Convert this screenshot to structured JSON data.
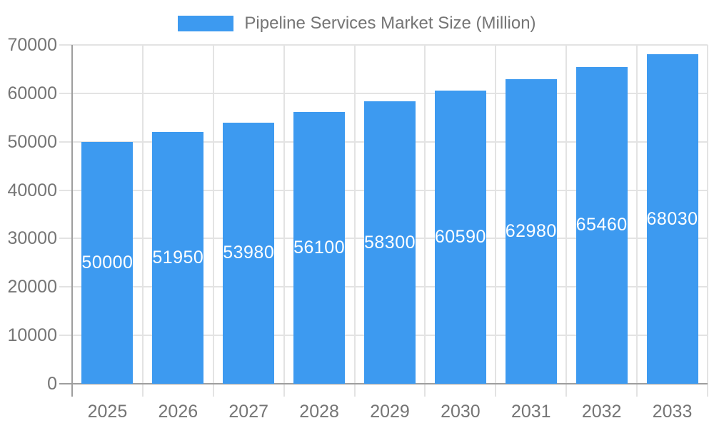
{
  "chart_data": {
    "type": "bar",
    "title": "Pipeline Services Market Size (Million)",
    "categories": [
      "2025",
      "2026",
      "2027",
      "2028",
      "2029",
      "2030",
      "2031",
      "2032",
      "2033"
    ],
    "values": [
      50000,
      51950,
      53980,
      56100,
      58300,
      60590,
      62980,
      65460,
      68030
    ],
    "xlabel": "",
    "ylabel": "",
    "ylim": [
      0,
      70000
    ],
    "yticks": [
      0,
      10000,
      20000,
      30000,
      40000,
      50000,
      60000,
      70000
    ],
    "grid": true,
    "legend_position": "top-center",
    "value_labels": "inside-center",
    "colors": {
      "bar": "#3D9AF0",
      "value_label": "#FFFFFF",
      "axis": "#9E9E9E",
      "grid": "#E3E3E3",
      "text": "#757575"
    }
  }
}
